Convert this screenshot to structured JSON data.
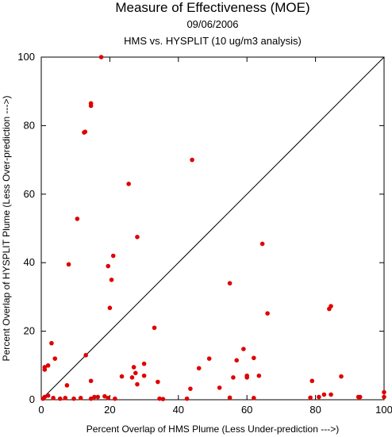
{
  "chart_data": {
    "type": "scatter",
    "title": "Measure of Effectiveness (MOE)",
    "subtitle_lines": [
      "09/06/2006",
      "HMS vs. HYSPLIT  (10 ug/m3 analysis)"
    ],
    "xlabel": "Percent Overlap of HMS Plume (Less Under-prediction --->)",
    "ylabel": "Percent Overlap of HYSPLIT Plume (Less Over-prediction --->)",
    "xlim": [
      0,
      100
    ],
    "ylim": [
      0,
      100
    ],
    "x_ticks": [
      "0",
      "20",
      "40",
      "60",
      "80",
      "100"
    ],
    "y_ticks": [
      "0",
      "20",
      "40",
      "60",
      "80",
      "100"
    ],
    "grid": false,
    "diagonal_reference_line": true,
    "point_color": "#e00000",
    "points": [
      [
        17.5,
        100
      ],
      [
        14.5,
        86.5
      ],
      [
        14.5,
        85.8
      ],
      [
        12.8,
        78.2
      ],
      [
        12.5,
        78.0
      ],
      [
        25.5,
        63.0
      ],
      [
        44.0,
        70.0
      ],
      [
        10.5,
        52.8
      ],
      [
        28.0,
        47.5
      ],
      [
        64.5,
        45.5
      ],
      [
        8.0,
        39.5
      ],
      [
        21.0,
        42.0
      ],
      [
        19.5,
        39.0
      ],
      [
        20.5,
        35.0
      ],
      [
        55.0,
        34.0
      ],
      [
        20.0,
        26.8
      ],
      [
        66.0,
        25.2
      ],
      [
        84.5,
        27.3
      ],
      [
        84.0,
        26.5
      ],
      [
        33.0,
        21.0
      ],
      [
        3.0,
        16.5
      ],
      [
        59.0,
        14.8
      ],
      [
        4.0,
        12.0
      ],
      [
        13.0,
        13.0
      ],
      [
        62.0,
        12.2
      ],
      [
        57.0,
        11.5
      ],
      [
        49.0,
        12.0
      ],
      [
        30.0,
        10.5
      ],
      [
        1.0,
        9.5
      ],
      [
        1.0,
        8.8
      ],
      [
        2.0,
        10.0
      ],
      [
        27.0,
        9.5
      ],
      [
        46.0,
        9.2
      ],
      [
        23.5,
        6.8
      ],
      [
        26.5,
        6.5
      ],
      [
        27.5,
        7.8
      ],
      [
        30.0,
        7.0
      ],
      [
        56.0,
        6.5
      ],
      [
        60.0,
        7.0
      ],
      [
        60.0,
        6.5
      ],
      [
        63.5,
        7.0
      ],
      [
        87.5,
        6.8
      ],
      [
        14.5,
        5.5
      ],
      [
        34.0,
        5.2
      ],
      [
        79.0,
        5.5
      ],
      [
        28.0,
        4.5
      ],
      [
        7.5,
        4.2
      ],
      [
        43.5,
        3.2
      ],
      [
        52.0,
        3.5
      ],
      [
        2.0,
        1.2
      ],
      [
        1.0,
        0.8
      ],
      [
        3.5,
        0.5
      ],
      [
        5.5,
        0.3
      ],
      [
        7.0,
        0.5
      ],
      [
        9.5,
        0.3
      ],
      [
        11.5,
        0.5
      ],
      [
        14.5,
        0.3
      ],
      [
        15.5,
        0.8
      ],
      [
        16.5,
        0.8
      ],
      [
        18.5,
        1.0
      ],
      [
        19.5,
        0.5
      ],
      [
        21.5,
        0.3
      ],
      [
        34.5,
        0.3
      ],
      [
        35.5,
        0.2
      ],
      [
        42.5,
        0.3
      ],
      [
        55.0,
        0.6
      ],
      [
        62.0,
        0.5
      ],
      [
        78.5,
        0.6
      ],
      [
        81.0,
        0.8
      ],
      [
        82.5,
        1.5
      ],
      [
        84.5,
        1.5
      ],
      [
        92.5,
        0.8
      ],
      [
        93.0,
        0.8
      ],
      [
        100.0,
        2.2
      ],
      [
        100.0,
        0.8
      ],
      [
        0.5,
        0.3
      ]
    ]
  }
}
